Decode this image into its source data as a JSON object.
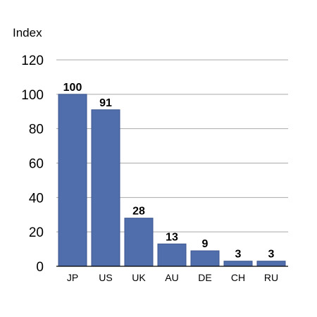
{
  "chart_data": {
    "type": "bar",
    "ylabel": "Index",
    "xlabel": "",
    "categories": [
      "JP",
      "US",
      "UK",
      "AU",
      "DE",
      "CH",
      "RU"
    ],
    "values": [
      100,
      91,
      28,
      13,
      9,
      3,
      3
    ],
    "data_labels": [
      "100",
      "91",
      "28",
      "13",
      "9",
      "3",
      "3"
    ],
    "ylim": [
      0,
      120
    ],
    "yticks": [
      0,
      20,
      40,
      60,
      80,
      100,
      120
    ],
    "ytick_labels": [
      "0",
      "20",
      "40",
      "60",
      "80",
      "100",
      "120"
    ],
    "grid": true,
    "legend": false,
    "colors": {
      "bar": "#4f6eab",
      "bar_edge": "#3c5790",
      "grid": "#a9a9a9",
      "axis": "#000000"
    }
  }
}
